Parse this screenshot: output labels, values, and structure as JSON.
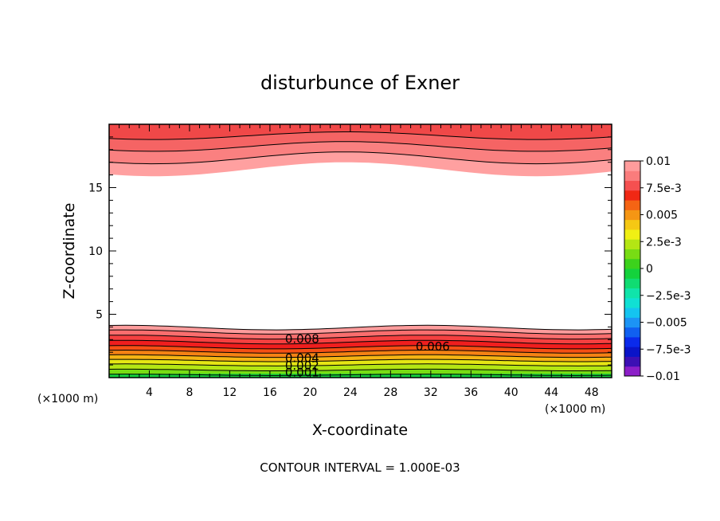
{
  "chart_data": {
    "type": "contour",
    "title": "disturbunce of Exner",
    "xlabel": "X-coordinate",
    "ylabel": "Z-coordinate",
    "x_unit_left": "(×1000 m)",
    "x_unit_right": "(×1000 m)",
    "xlim": [
      0,
      50
    ],
    "ylim": [
      0,
      20
    ],
    "x_ticks": [
      4,
      8,
      12,
      16,
      20,
      24,
      28,
      32,
      36,
      40,
      44,
      48
    ],
    "y_ticks": [
      5,
      10,
      15
    ],
    "colorbar": {
      "levels": [
        -0.01,
        -0.009,
        -0.008,
        -0.007,
        -0.006,
        -0.005,
        -0.004,
        -0.003,
        -0.002,
        -0.001,
        0,
        0.001,
        0.002,
        0.003,
        0.004,
        0.005,
        0.006,
        0.007,
        0.008,
        0.009,
        0.01
      ],
      "colors": [
        "#8c1fc8",
        "#3c10b4",
        "#0a14c8",
        "#0a2aeb",
        "#1060f0",
        "#1c94f5",
        "#14c4f0",
        "#10e0d4",
        "#10e4aa",
        "#10dc72",
        "#14d23c",
        "#3cd21c",
        "#78dc14",
        "#b4e614",
        "#f0f014",
        "#f5c814",
        "#f59614",
        "#f56414",
        "#f02814",
        "#f55050",
        "#fa7c7c",
        "#ff9c9c"
      ],
      "tick_labels": [
        "0.01",
        "7.5e-3",
        "0.005",
        "2.5e-3",
        "0",
        "−2.5e-3",
        "−0.005",
        "−7.5e-3",
        "−0.01"
      ]
    },
    "contour_labels": [
      "0.008",
      "0.006",
      "0.004",
      "0.002",
      "0.001"
    ],
    "footer": "CONTOUR INTERVAL = 1.000E-03"
  }
}
